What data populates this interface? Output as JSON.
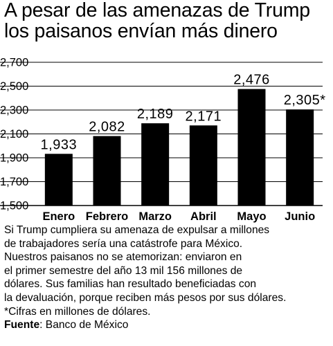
{
  "header": {
    "title_line1": "A pesar de las amenazas de Trump",
    "title_line2": "los paisanos envían más dinero"
  },
  "chart_data": {
    "type": "bar",
    "categories": [
      "Enero",
      "Febrero",
      "Marzo",
      "Abril",
      "Mayo",
      "Junio"
    ],
    "values": [
      1933,
      2082,
      2189,
      2171,
      2476,
      2305
    ],
    "data_labels": [
      "1,933",
      "2,082",
      "2,189",
      "2,171",
      "2,476",
      "2,305*"
    ],
    "y_ticks": [
      1500,
      1700,
      1900,
      2100,
      2300,
      2500,
      2700
    ],
    "y_tick_labels": [
      "1,500",
      "1,700",
      "1,900",
      "2,100",
      "2,300",
      "2,500",
      "2,700"
    ],
    "ylim": [
      1500,
      2700
    ],
    "grid": true,
    "bar_color": "#000000"
  },
  "text": {
    "lines": [
      "Si Trump cumpliera su amenaza de expulsar a millones",
      "de trabajadores sería una catástrofe para México.",
      "Nuestros paisanos no se atemorizan: enviaron en",
      "el primer semestre del año 13 mil 156 millones de",
      "dólares. Sus familias han resultado beneficiadas con",
      "la devaluación, porque reciben más pesos por sus dólares."
    ],
    "footnote": "*Cifras en millones de dólares.",
    "source_label": "Fuente",
    "source_value": ": Banco de México"
  }
}
